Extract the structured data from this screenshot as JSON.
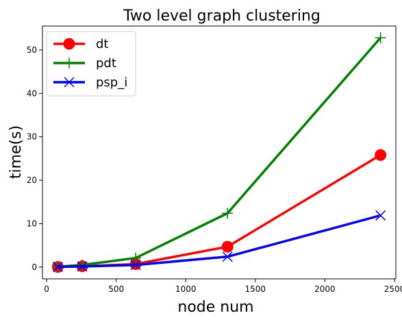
{
  "chart_data": {
    "type": "line",
    "title": "Two level graph clustering",
    "xlabel": "node num",
    "ylabel": "time(s)",
    "xlim": [
      -30,
      2510
    ],
    "ylim": [
      -2.7,
      55.5
    ],
    "xticks": [
      0,
      500,
      1000,
      1500,
      2000,
      2500
    ],
    "yticks": [
      0,
      10,
      20,
      30,
      40,
      50
    ],
    "grid": false,
    "legend_position": "top-left",
    "x": [
      80,
      256,
      640,
      1300,
      2400
    ],
    "series": [
      {
        "name": "dt",
        "color": "#ff0000",
        "marker": "circle",
        "values": [
          0.05,
          0.2,
          0.7,
          4.7,
          25.8
        ]
      },
      {
        "name": "pdt",
        "color": "#008000",
        "marker": "plus",
        "values": [
          0.1,
          0.5,
          2.1,
          12.4,
          52.8
        ]
      },
      {
        "name": "psp_i",
        "color": "#0000ff",
        "marker": "x",
        "values": [
          0.05,
          0.15,
          0.5,
          2.4,
          11.9
        ]
      }
    ]
  }
}
